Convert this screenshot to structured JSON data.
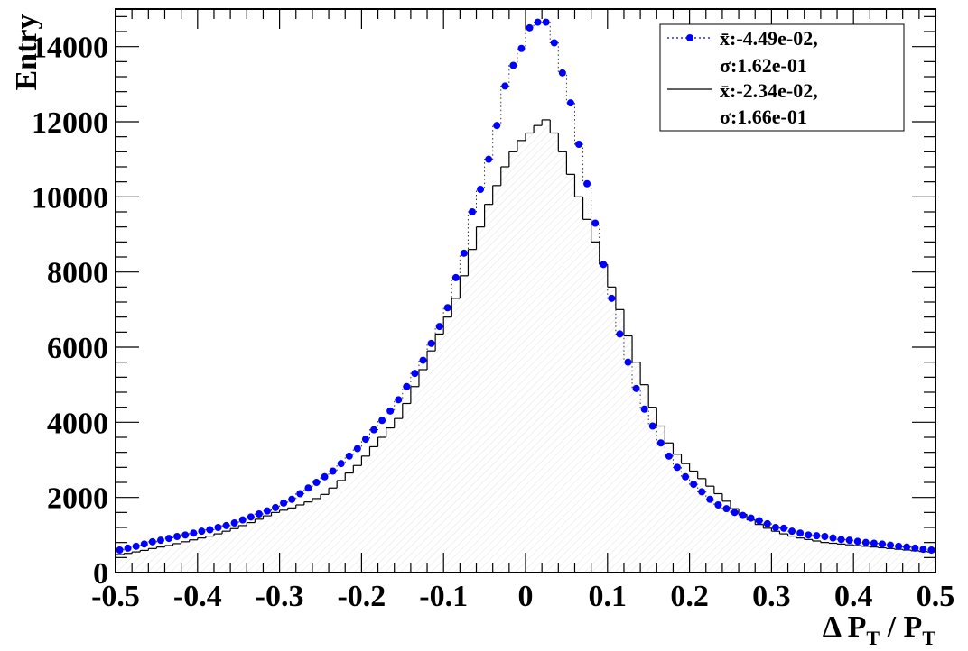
{
  "chart_data": {
    "type": "histogram",
    "xlabel_main": "Δ P",
    "xlabel_sub": "T",
    "xlabel_sep": " / P",
    "xlabel_sub2": "T",
    "ylabel": "Entry",
    "xlim": [
      -0.5,
      0.5
    ],
    "ylim": [
      0,
      15000
    ],
    "x_ticks": [
      "-0.5",
      "-0.4",
      "-0.3",
      "-0.2",
      "-0.1",
      "0",
      "0.1",
      "0.2",
      "0.3",
      "0.4",
      "0.5"
    ],
    "y_ticks": [
      "0",
      "2000",
      "4000",
      "6000",
      "8000",
      "10000",
      "12000",
      "14000"
    ],
    "bins": 100,
    "series": [
      {
        "key": "blue",
        "style": "markers-dotted",
        "color": "#0000ff",
        "legend_line1": "x̄:-4.49e-02,",
        "legend_line2": "σ:1.62e-01",
        "values": [
          600,
          650,
          700,
          760,
          820,
          860,
          910,
          960,
          1000,
          1050,
          1100,
          1140,
          1200,
          1250,
          1320,
          1400,
          1480,
          1560,
          1640,
          1730,
          1850,
          1950,
          2100,
          2250,
          2400,
          2550,
          2700,
          2900,
          3100,
          3300,
          3550,
          3800,
          4050,
          4300,
          4600,
          4950,
          5300,
          5650,
          6100,
          6550,
          7050,
          7850,
          8500,
          9600,
          10200,
          11000,
          11900,
          12950,
          13500,
          13950,
          14500,
          14650,
          14650,
          14100,
          13300,
          12500,
          11400,
          10350,
          9300,
          8200,
          7300,
          6350,
          5600,
          4900,
          4350,
          3900,
          3450,
          3100,
          2800,
          2550,
          2350,
          2150,
          1950,
          1800,
          1700,
          1600,
          1520,
          1450,
          1380,
          1300,
          1200,
          1180,
          1100,
          1050,
          1000,
          980,
          960,
          920,
          880,
          860,
          830,
          800,
          780,
          760,
          730,
          700,
          680,
          650,
          620,
          600
        ]
      },
      {
        "key": "black",
        "style": "step",
        "color": "#000000",
        "legend_line1": "x̄:-2.34e-02,",
        "legend_line2": "σ:1.66e-01",
        "values": [
          480,
          510,
          550,
          590,
          640,
          680,
          720,
          770,
          820,
          870,
          920,
          970,
          1030,
          1100,
          1170,
          1250,
          1330,
          1420,
          1510,
          1600,
          1660,
          1720,
          1800,
          1880,
          1970,
          2080,
          2250,
          2450,
          2650,
          2850,
          3100,
          3350,
          3600,
          3850,
          4100,
          4500,
          4950,
          5400,
          5900,
          6350,
          6800,
          7300,
          7900,
          8600,
          9200,
          9800,
          10300,
          10800,
          11200,
          11500,
          11700,
          11900,
          12050,
          11700,
          11200,
          10600,
          10000,
          9400,
          8800,
          8200,
          7600,
          7000,
          6300,
          5600,
          5000,
          4400,
          3900,
          3450,
          3150,
          2900,
          2700,
          2500,
          2300,
          2100,
          1900,
          1700,
          1550,
          1400,
          1280,
          1180,
          1100,
          1030,
          970,
          920,
          880,
          840,
          800,
          780,
          760,
          740,
          720,
          700,
          680,
          660,
          640,
          620,
          600,
          580,
          560,
          550
        ]
      }
    ]
  }
}
